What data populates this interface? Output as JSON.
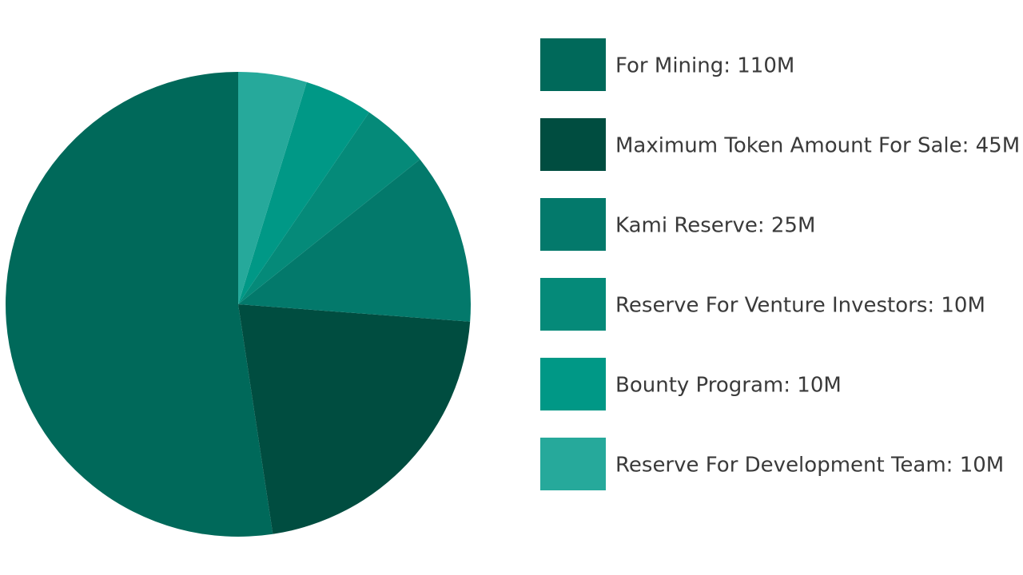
{
  "chart_data": {
    "type": "pie",
    "categories": [
      "For Mining: 110M",
      "Maximum Token Amount For Sale: 45M",
      "Kami Reserve: 25M",
      "Reserve For Venture Investors: 10M",
      "Bounty Program: 10M",
      "Reserve For Development Team: 10M"
    ],
    "values": [
      110,
      45,
      25,
      10,
      10,
      10
    ],
    "colors": [
      "#00695a",
      "#004d40",
      "#03796b",
      "#058a79",
      "#009886",
      "#26a99b"
    ]
  }
}
